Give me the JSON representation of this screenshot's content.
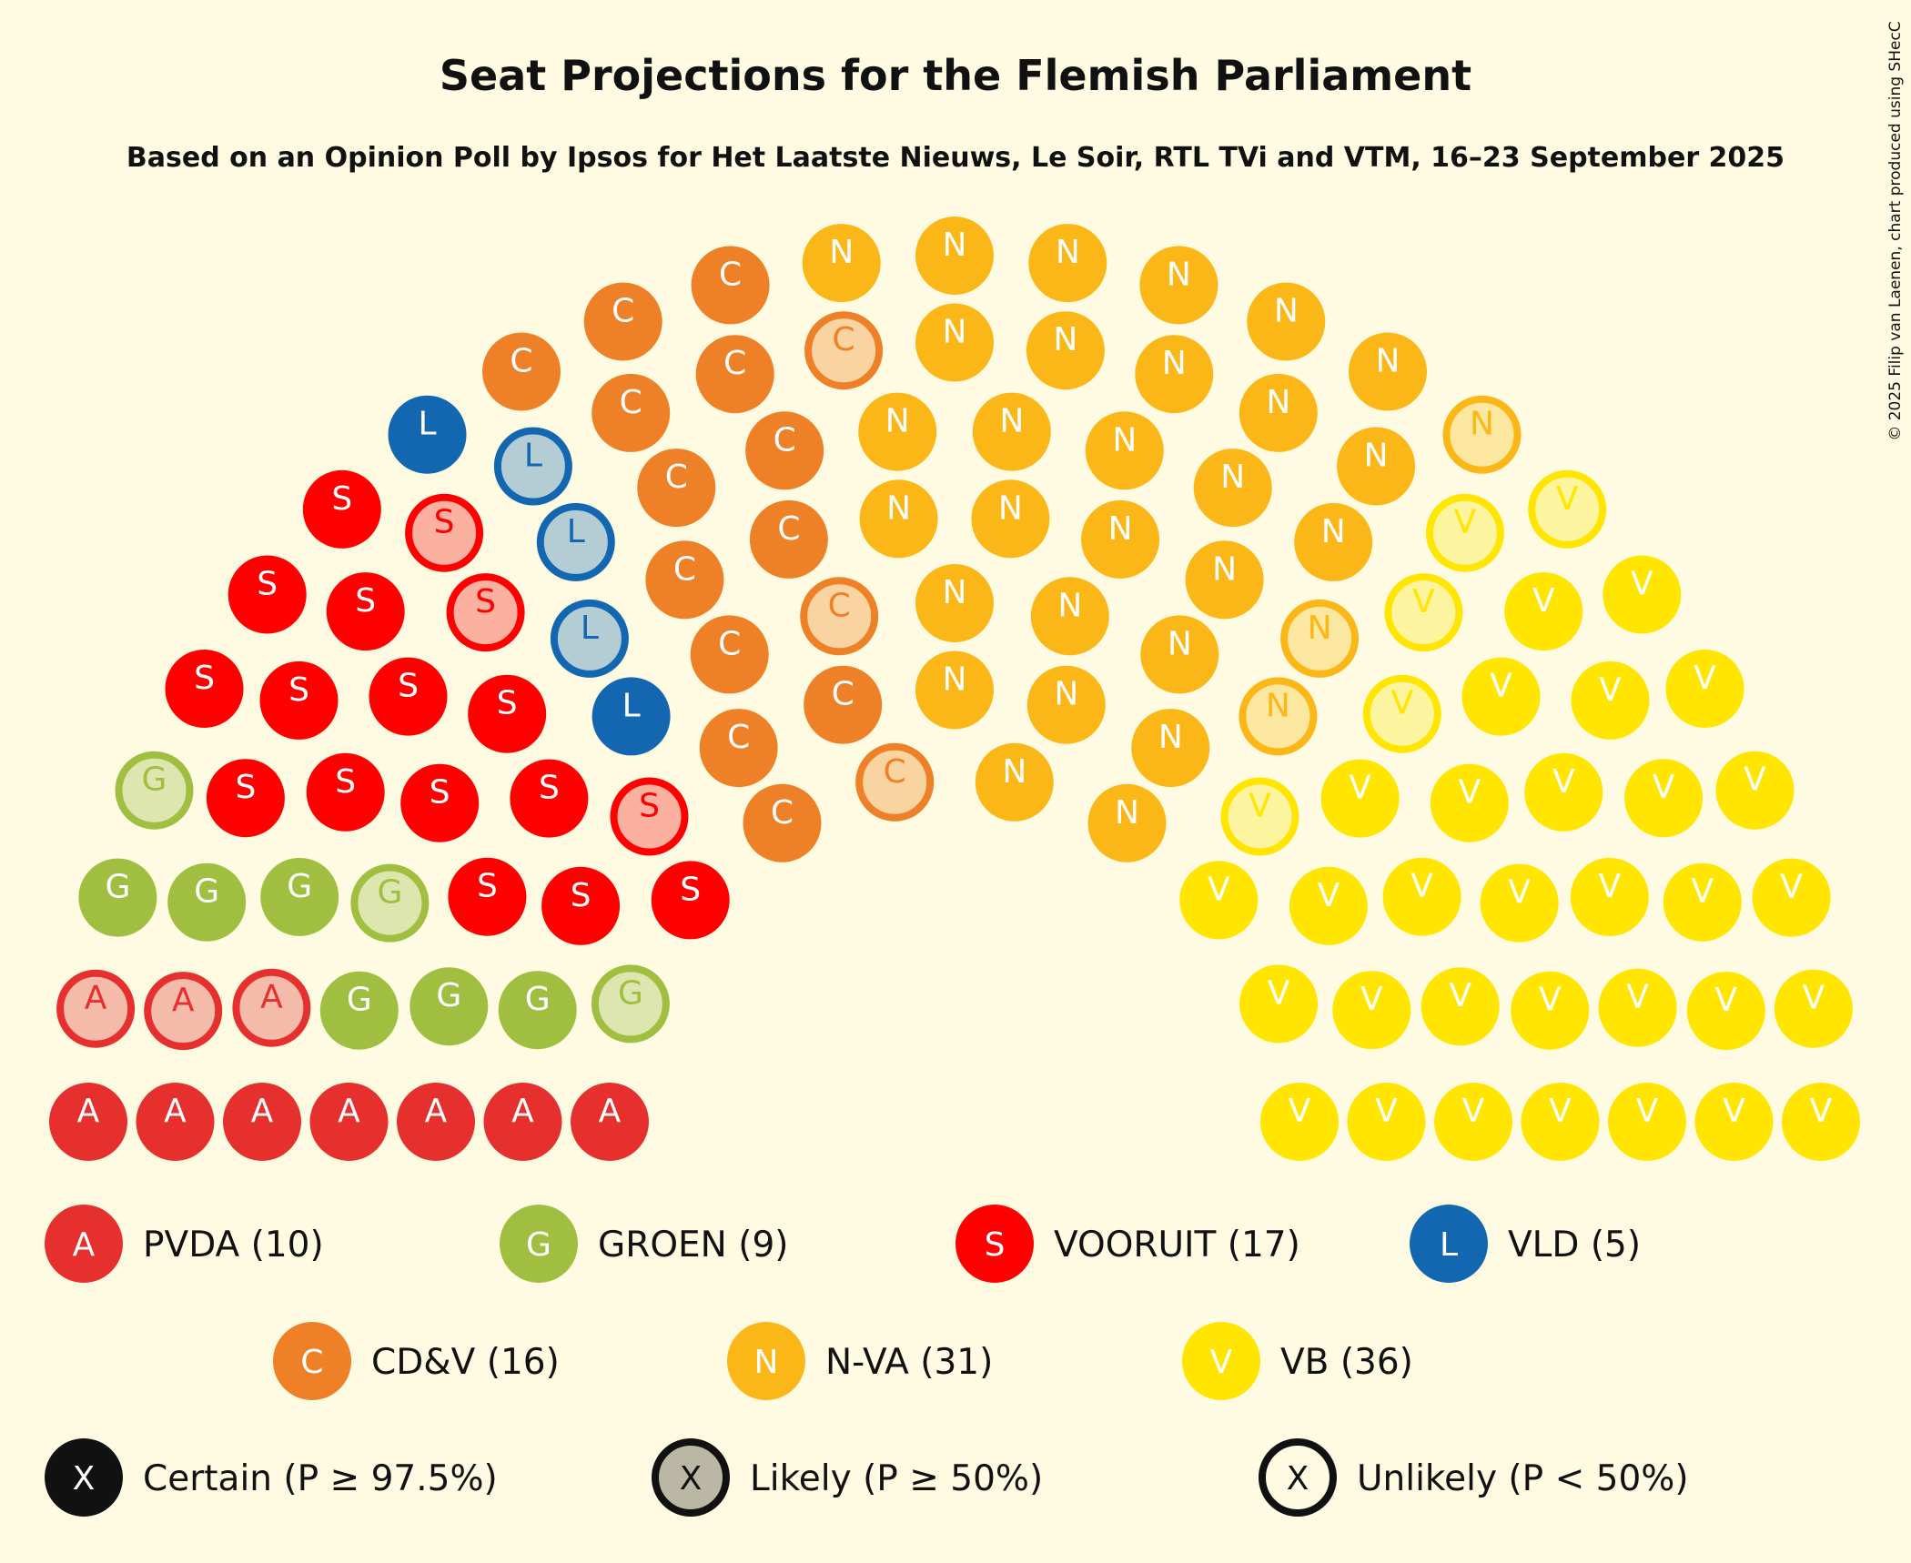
{
  "chart_data": {
    "type": "hemicycle",
    "title": "Seat Projections for the Flemish Parliament",
    "subtitle": "Based on an Opinion Poll by Ipsos for Het Laatste Nieuws, Le Soir, RTL TVi and VTM, 16–23 September 2025",
    "copyright": "© 2025 Filip van Laenen, chart produced using SHecC",
    "total_seats": 124,
    "parties": [
      {
        "name": "PVDA",
        "letter": "A",
        "seats": 10,
        "certain": 7,
        "likely": 3,
        "color": "#E5302E",
        "tint": "#F5BBAA",
        "legend": "PVDA (10)"
      },
      {
        "name": "GROEN",
        "letter": "G",
        "seats": 9,
        "certain": 6,
        "likely": 3,
        "color": "#A0BF40",
        "tint": "#DDE6AE",
        "legend": "GROEN (9)"
      },
      {
        "name": "VOORUIT",
        "letter": "S",
        "seats": 17,
        "certain": 14,
        "likely": 3,
        "color": "#FF0000",
        "tint": "#FBB0A0",
        "legend": "VOORUIT (17)"
      },
      {
        "name": "VLD",
        "letter": "L",
        "seats": 5,
        "certain": 2,
        "likely": 3,
        "color": "#1267B0",
        "tint": "#B4CDD4",
        "legend": "VLD (5)"
      },
      {
        "name": "CD&V",
        "letter": "C",
        "seats": 16,
        "certain": 13,
        "likely": 3,
        "color": "#EE8127",
        "tint": "#F9D3A0",
        "legend": "CD&V (16)"
      },
      {
        "name": "N-VA",
        "letter": "N",
        "seats": 31,
        "certain": 28,
        "likely": 3,
        "color": "#FBB718",
        "tint": "#FCE7A0",
        "legend": "N-VA (31)"
      },
      {
        "name": "VB",
        "letter": "V",
        "seats": 36,
        "certain": 31,
        "likely": 5,
        "color": "#FFE500",
        "tint": "#FDF4A0",
        "legend": "VB (36)"
      }
    ],
    "status_legend": [
      {
        "symbol": "X",
        "label": "Certain (P ≥ 97.5%)"
      },
      {
        "symbol": "X",
        "label": "Likely (P ≥ 50%)"
      },
      {
        "symbol": "X",
        "label": "Unlikely (P < 50%)"
      }
    ]
  }
}
